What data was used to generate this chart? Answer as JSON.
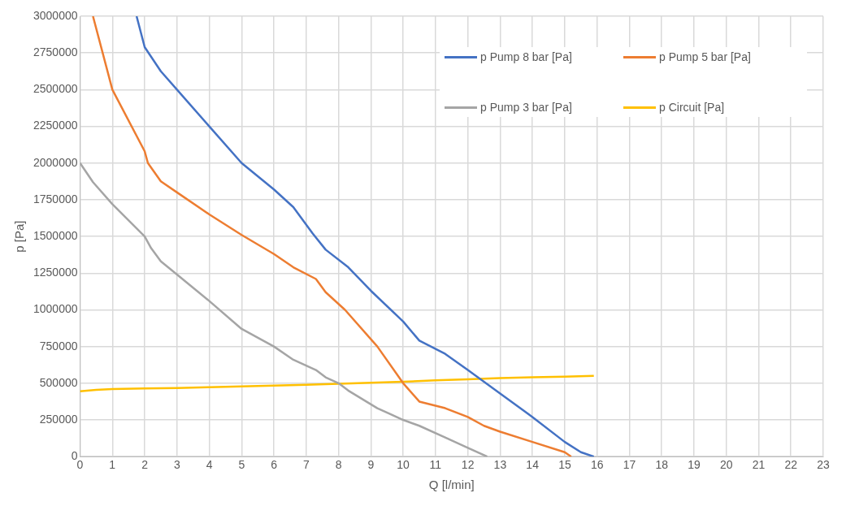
{
  "chart_data": {
    "type": "line",
    "xlabel": "Q [l/min]",
    "ylabel": "p [Pa]",
    "xlim": [
      0,
      23
    ],
    "xticks": [
      0,
      1,
      2,
      3,
      4,
      5,
      6,
      7,
      8,
      9,
      10,
      11,
      12,
      13,
      14,
      15,
      16,
      17,
      18,
      19,
      20,
      21,
      22,
      23
    ],
    "ylim": [
      0,
      3000000
    ],
    "yticks": [
      0,
      250000,
      500000,
      750000,
      1000000,
      1250000,
      1500000,
      1750000,
      2000000,
      2250000,
      2500000,
      2750000,
      3000000
    ],
    "grid": true,
    "legend": "top right",
    "marker": "none",
    "line_style": "solid",
    "series": [
      {
        "name": "p Pump 8 bar [Pa]",
        "color": "#4472c4",
        "x": [
          1.75,
          2,
          2.5,
          3,
          4,
          5,
          6,
          6.6,
          7.2,
          7.6,
          8.3,
          9,
          10,
          10.5,
          11.3,
          12,
          13,
          14,
          15,
          15.5,
          15.9
        ],
        "values": [
          3000000,
          2790000,
          2625000,
          2500000,
          2250000,
          2000000,
          1820000,
          1700000,
          1520000,
          1410000,
          1290000,
          1130000,
          920000,
          790000,
          700000,
          590000,
          430000,
          270000,
          100000,
          30000,
          0
        ]
      },
      {
        "name": "p Pump 5 bar [Pa]",
        "color": "#ed7d31",
        "x": [
          0.4,
          1,
          2,
          2.1,
          2.5,
          3,
          4,
          5,
          6,
          6.6,
          7.3,
          7.6,
          8.2,
          9.2,
          10,
          10.5,
          11.3,
          12,
          12.5,
          13,
          14,
          15,
          15.2
        ],
        "values": [
          3000000,
          2500000,
          2080000,
          2000000,
          1875000,
          1800000,
          1650000,
          1510000,
          1380000,
          1290000,
          1210000,
          1120000,
          1000000,
          750000,
          500000,
          375000,
          330000,
          270000,
          210000,
          170000,
          100000,
          30000,
          0
        ]
      },
      {
        "name": "p Pump 3 bar [Pa]",
        "color": "#a5a5a5",
        "x": [
          0,
          0.4,
          1,
          2,
          2.2,
          2.5,
          3,
          4,
          5,
          6,
          6.6,
          7.3,
          7.6,
          8,
          8.3,
          9.2,
          10,
          10.5,
          11.3,
          12,
          12.6
        ],
        "values": [
          2000000,
          1870000,
          1720000,
          1500000,
          1420000,
          1330000,
          1240000,
          1060000,
          870000,
          750000,
          660000,
          590000,
          540000,
          500000,
          450000,
          330000,
          250000,
          210000,
          130000,
          60000,
          0
        ]
      },
      {
        "name": "p Circuit [Pa]",
        "color": "#ffc000",
        "x": [
          0,
          0.5,
          1,
          2,
          3,
          4,
          5,
          6,
          7,
          8,
          9,
          10,
          11,
          12,
          13,
          14,
          15,
          15.9
        ],
        "values": [
          445000,
          455000,
          460000,
          465000,
          467000,
          473000,
          478000,
          484000,
          490000,
          497000,
          503000,
          510000,
          520000,
          527000,
          535000,
          540000,
          545000,
          550000
        ]
      }
    ]
  }
}
